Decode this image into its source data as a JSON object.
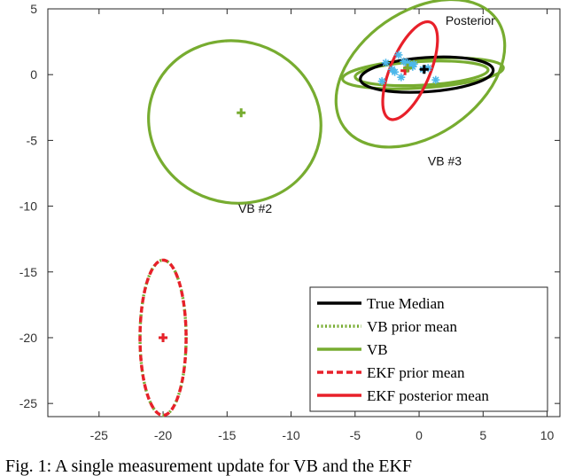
{
  "caption": "Fig. 1: A single measurement update for VB and the EKF",
  "chart_data": {
    "type": "scatter",
    "xlim": [
      -29,
      11
    ],
    "ylim": [
      -26,
      5
    ],
    "x_ticks": [
      -25,
      -20,
      -15,
      -10,
      -5,
      0,
      5,
      10
    ],
    "y_ticks": [
      5,
      0,
      -5,
      -10,
      -15,
      -20,
      -25
    ],
    "grid": false,
    "legend_position": "bottom-right",
    "colors": {
      "true_median": "#000000",
      "vb": "#77ac30",
      "ekf": "#e8202a",
      "samples": "#4db8ea"
    },
    "legend": [
      {
        "label": "True Median",
        "color": "#000000",
        "style": "solid"
      },
      {
        "label": "VB prior mean",
        "color": "#77ac30",
        "style": "dotted"
      },
      {
        "label": "VB",
        "color": "#77ac30",
        "style": "solid"
      },
      {
        "label": "EKF prior mean",
        "color": "#e8202a",
        "style": "dashed"
      },
      {
        "label": "EKF posterior mean",
        "color": "#e8202a",
        "style": "solid"
      }
    ],
    "ellipses": [
      {
        "name": "vb-2",
        "cx": -14.4,
        "cy": -3.6,
        "rx": 6.3,
        "ry": 6.6,
        "angle": 72,
        "color": "#77ac30",
        "style": "solid"
      },
      {
        "name": "vb-3-large",
        "cx": 0.1,
        "cy": 0.1,
        "rx": 7.3,
        "ry": 4.7,
        "angle": 35,
        "color": "#77ac30",
        "style": "solid"
      },
      {
        "name": "vb-3-mid",
        "cx": 0.3,
        "cy": 0.1,
        "rx": 6.3,
        "ry": 1.1,
        "angle": 4,
        "color": "#77ac30",
        "style": "solid"
      },
      {
        "name": "vb-3-small",
        "cx": 0.2,
        "cy": 0.1,
        "rx": 5.2,
        "ry": 0.9,
        "angle": 3,
        "color": "#77ac30",
        "style": "solid"
      },
      {
        "name": "true-median",
        "cx": 0.6,
        "cy": 0.0,
        "rx": 5.2,
        "ry": 1.3,
        "angle": 4,
        "color": "#000000",
        "style": "solid"
      },
      {
        "name": "ekf-posterior",
        "cx": -0.7,
        "cy": 0.3,
        "rx": 4.1,
        "ry": 1.5,
        "angle": 67,
        "color": "#e8202a",
        "style": "solid"
      },
      {
        "name": "vb-prior",
        "cx": -20,
        "cy": -20,
        "rx": 1.8,
        "ry": 5.9,
        "angle": 0,
        "color": "#77ac30",
        "style": "dotted"
      },
      {
        "name": "ekf-prior",
        "cx": -20,
        "cy": -20,
        "rx": 1.8,
        "ry": 5.9,
        "angle": 0,
        "color": "#e8202a",
        "style": "dashed"
      }
    ],
    "centers": [
      {
        "name": "vb-2-center",
        "x": -13.9,
        "y": -2.9,
        "color": "#77ac30"
      },
      {
        "name": "vb-prior-center",
        "x": -20,
        "y": -20,
        "color": "#77ac30"
      },
      {
        "name": "ekf-prior-center",
        "x": -20,
        "y": -20,
        "color": "#e8202a"
      },
      {
        "name": "true-median-center",
        "x": 0.4,
        "y": 0.4,
        "color": "#000000"
      },
      {
        "name": "ekf-posterior-center",
        "x": -1.1,
        "y": 0.3,
        "color": "#e8202a"
      },
      {
        "name": "vb-posterior-center",
        "x": -0.9,
        "y": 0.5,
        "color": "#77ac30"
      }
    ],
    "samples": {
      "x": [
        -2.6,
        -1.6,
        -1.2,
        -0.8,
        -2.9,
        -2.1,
        -1.4,
        -0.4,
        0.7,
        -1.9,
        -0.9,
        1.3,
        0.3,
        -0.5
      ],
      "y": [
        0.9,
        1.5,
        1.0,
        0.7,
        -0.5,
        0.4,
        -0.2,
        0.8,
        0.5,
        0.2,
        0.9,
        -0.4,
        0.4,
        0.6
      ]
    },
    "annotations": [
      {
        "text": "Posterior",
        "x": 4,
        "y": 3.8
      },
      {
        "text": "VB #3",
        "x": 2,
        "y": -6.9
      },
      {
        "text": "VB #2",
        "x": -12.8,
        "y": -10.5
      }
    ]
  }
}
